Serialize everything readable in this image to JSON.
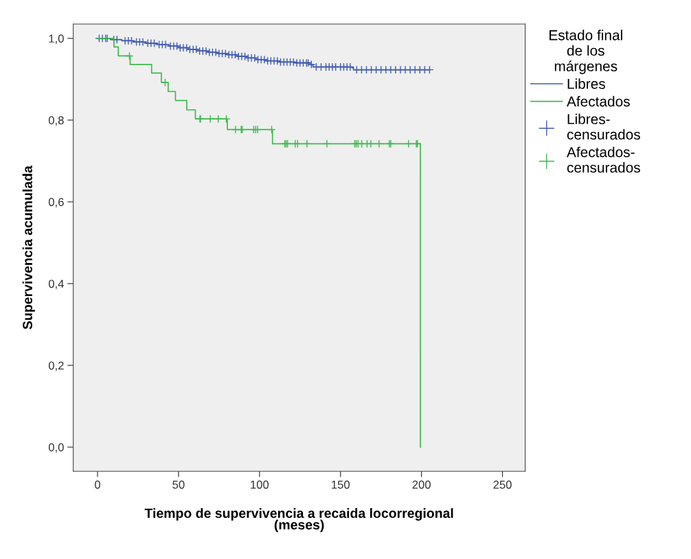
{
  "chart_data": {
    "type": "step",
    "xlabel": "Tiempo de supervivencia a recaida locorregional\n(meses)",
    "ylabel": "Supervivencia acumulada",
    "legend_title": "Estado final\nde los\nmárgenes",
    "legend": "right",
    "grid": false,
    "xlim": [
      -15,
      264
    ],
    "xticks": [
      0,
      50,
      100,
      150,
      200,
      250
    ],
    "ylim": [
      -0.059,
      1.035
    ],
    "yticks": [
      {
        "value": 0,
        "label": "0,0"
      },
      {
        "value": 0.2,
        "label": "0,2"
      },
      {
        "value": 0.4,
        "label": "0,4"
      },
      {
        "value": 0.6,
        "label": "0,6"
      },
      {
        "value": 0.8,
        "label": "0,8"
      },
      {
        "value": 1.0,
        "label": "1,0"
      }
    ],
    "series": [
      {
        "name": "Libres",
        "color": "#3f5bb0",
        "marker": "none",
        "x": [
          0,
          8,
          15,
          22,
          30,
          37,
          44,
          50,
          56,
          62,
          68,
          74,
          80,
          86,
          92,
          98,
          104,
          112,
          122,
          131,
          133,
          157,
          158,
          205
        ],
        "values": [
          1.0,
          0.997,
          0.994,
          0.991,
          0.988,
          0.985,
          0.981,
          0.977,
          0.973,
          0.969,
          0.966,
          0.963,
          0.96,
          0.956,
          0.952,
          0.948,
          0.945,
          0.942,
          0.94,
          0.936,
          0.93,
          0.928,
          0.923,
          0.923
        ]
      },
      {
        "name": "Afectados",
        "color": "#3cb94a",
        "marker": "none",
        "x": [
          0,
          10.1,
          12.8,
          20.1,
          33.4,
          39.4,
          43.6,
          48.1,
          55.1,
          60.4,
          80.1,
          108.0,
          199.3,
          199.3
        ],
        "values": [
          1.0,
          0.979,
          0.957,
          0.936,
          0.915,
          0.892,
          0.87,
          0.848,
          0.825,
          0.803,
          0.777,
          0.742,
          0.742,
          0.0
        ]
      },
      {
        "name": "Libres-\ncensurados",
        "type": "scatter",
        "color": "#3f5bb0",
        "marker": "cross",
        "x": [
          1,
          3,
          5,
          6,
          10,
          12,
          17,
          19,
          21,
          24,
          26,
          28,
          31,
          33,
          35,
          38,
          40,
          42,
          45,
          47,
          49,
          51,
          53,
          55,
          57,
          59,
          61,
          63,
          65,
          67,
          69,
          71,
          73,
          75,
          77,
          79,
          81,
          83,
          85,
          87,
          89,
          91,
          93,
          95,
          97,
          99,
          101,
          103,
          105,
          107,
          109,
          111,
          113,
          115,
          117,
          119,
          121,
          123,
          125,
          127,
          129,
          130,
          132,
          135,
          138,
          141,
          143,
          145,
          147,
          150,
          152,
          154,
          156,
          160,
          163,
          166,
          169,
          172,
          175,
          178,
          181,
          184,
          187,
          190,
          193,
          196,
          199,
          202,
          205
        ],
        "values": [
          1.0,
          1.0,
          1.0,
          1.0,
          0.997,
          0.997,
          0.994,
          0.994,
          0.994,
          0.991,
          0.991,
          0.991,
          0.988,
          0.988,
          0.988,
          0.985,
          0.985,
          0.985,
          0.981,
          0.981,
          0.981,
          0.977,
          0.977,
          0.977,
          0.973,
          0.973,
          0.973,
          0.969,
          0.969,
          0.969,
          0.966,
          0.966,
          0.966,
          0.963,
          0.963,
          0.963,
          0.96,
          0.96,
          0.96,
          0.956,
          0.956,
          0.956,
          0.952,
          0.952,
          0.952,
          0.948,
          0.948,
          0.948,
          0.945,
          0.945,
          0.945,
          0.945,
          0.942,
          0.942,
          0.942,
          0.942,
          0.942,
          0.94,
          0.94,
          0.94,
          0.94,
          0.94,
          0.936,
          0.93,
          0.93,
          0.93,
          0.93,
          0.93,
          0.93,
          0.93,
          0.93,
          0.93,
          0.93,
          0.923,
          0.923,
          0.923,
          0.923,
          0.923,
          0.923,
          0.923,
          0.923,
          0.923,
          0.923,
          0.923,
          0.923,
          0.923,
          0.923,
          0.923,
          0.923
        ]
      },
      {
        "name": "Afectados-\ncensurados",
        "type": "scatter",
        "color": "#3cb94a",
        "marker": "cross",
        "x": [
          19.7,
          41.7,
          63.2,
          63.6,
          69.6,
          74.5,
          79.5,
          85.2,
          88.7,
          89.3,
          96.4,
          97.6,
          98.8,
          107.5,
          115.6,
          116.4,
          117.3,
          122.0,
          123.5,
          129.3,
          141.6,
          158.8,
          159.7,
          160.8,
          163.1,
          166.4,
          168.7,
          173.8,
          180.1,
          181.0,
          192.0,
          196.8,
          197.5
        ],
        "values": [
          0.957,
          0.892,
          0.803,
          0.803,
          0.803,
          0.803,
          0.803,
          0.777,
          0.777,
          0.777,
          0.777,
          0.777,
          0.777,
          0.777,
          0.742,
          0.742,
          0.742,
          0.742,
          0.742,
          0.742,
          0.742,
          0.742,
          0.742,
          0.742,
          0.742,
          0.742,
          0.742,
          0.742,
          0.742,
          0.742,
          0.742,
          0.742,
          0.742
        ]
      }
    ]
  }
}
